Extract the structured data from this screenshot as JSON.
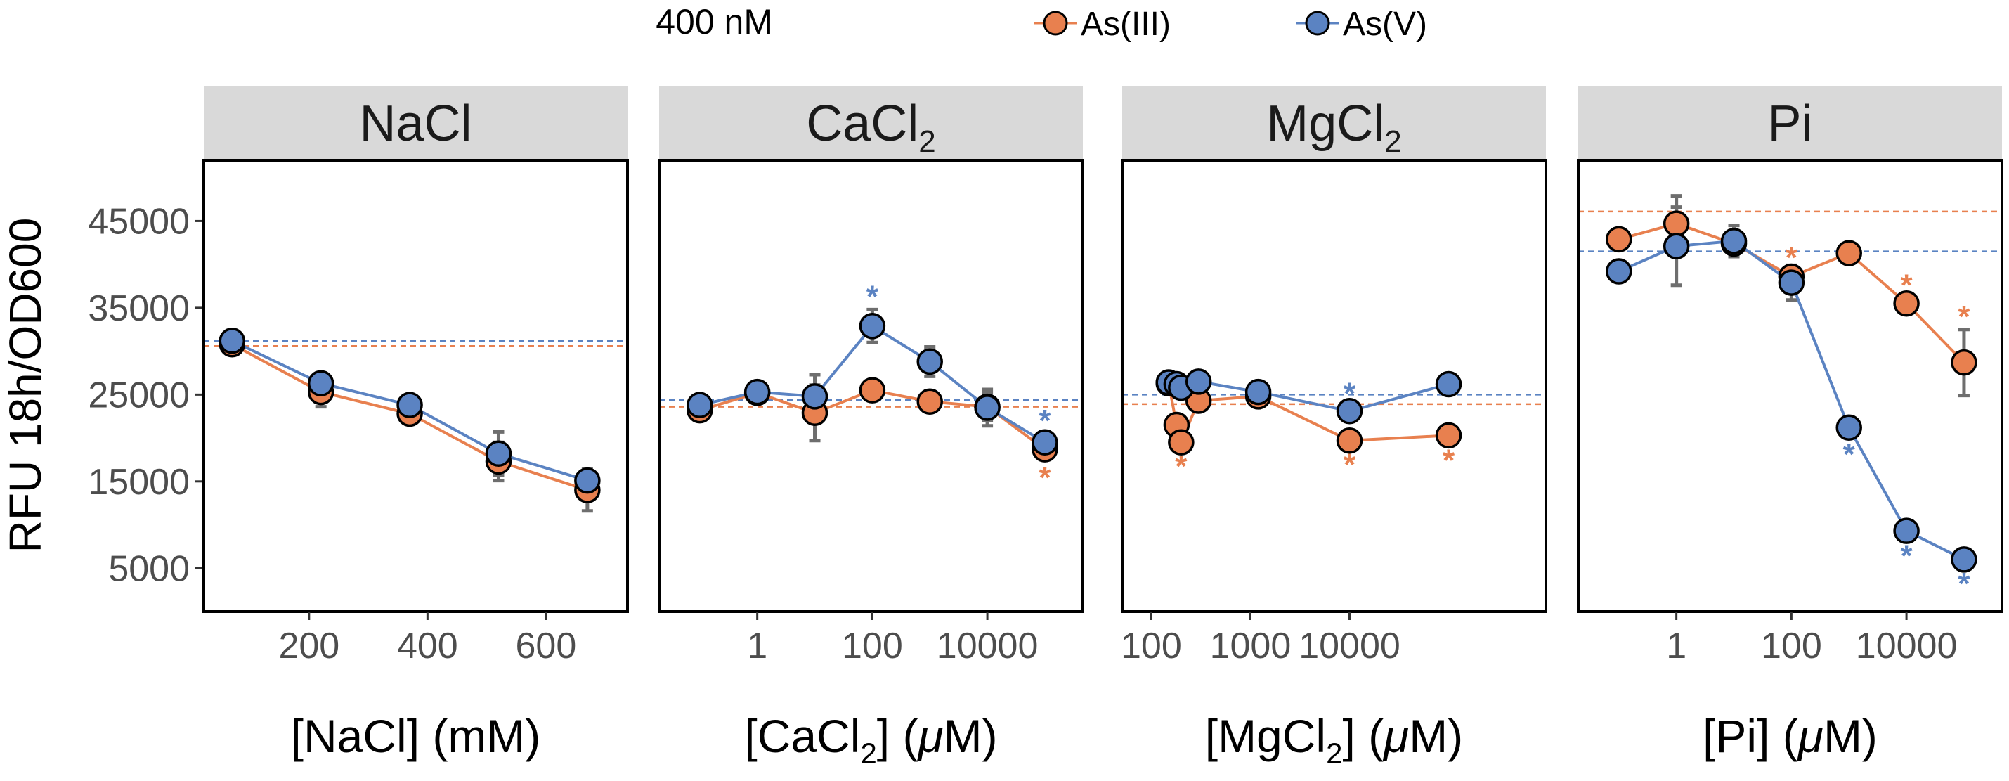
{
  "chart_data": {
    "type": "line",
    "legend": {
      "title": "400 nM",
      "position": "top-center",
      "entries": [
        {
          "key": "as3",
          "label": "As(III)",
          "color": "#E8804F"
        },
        {
          "key": "as5",
          "label": "As(V)",
          "color": "#5B83C2"
        }
      ]
    },
    "ylabel": "RFU 18h/OD600",
    "ylim": [
      0,
      52000
    ],
    "yticks": [
      5000,
      15000,
      25000,
      35000,
      45000
    ],
    "ytick_labels": [
      "5000",
      "15000",
      "25000",
      "35000",
      "45000"
    ],
    "facets": [
      {
        "name": "nacl",
        "strip": {
          "text": "NaCl",
          "sub": ""
        },
        "xlabel": {
          "pre": "[NaCl]",
          "sub": "",
          "post": " (mM)",
          "unit": "mM"
        },
        "scale": "linear",
        "xlim": [
          40,
          720
        ],
        "xticks": [
          200,
          400,
          600
        ],
        "xtick_labels": [
          "200",
          "400",
          "600"
        ],
        "series": [
          {
            "key": "as3",
            "x": [
              70,
              220,
              370,
              520,
              670
            ],
            "y": [
              30800,
              25300,
              22800,
              17300,
              14000
            ],
            "err": [
              600,
              1700,
              700,
              2200,
              2400
            ],
            "sig": [
              false,
              false,
              false,
              false,
              false
            ],
            "baseline": 30600
          },
          {
            "key": "as5",
            "x": [
              70,
              220,
              370,
              520,
              670
            ],
            "y": [
              31200,
              26300,
              23800,
              18200,
              15100
            ],
            "err": [
              500,
              1000,
              700,
              2500,
              1000
            ],
            "sig": [
              false,
              false,
              false,
              false,
              false
            ],
            "baseline": 31200
          }
        ]
      },
      {
        "name": "cacl2",
        "strip": {
          "text": "CaCl",
          "sub": "2"
        },
        "xlabel": {
          "pre": "[CaCl",
          "sub": "2",
          "post": "] (",
          "unit": "μM"
        },
        "scale": "log",
        "xlim": [
          0.03,
          300000
        ],
        "xticks": [
          1,
          100,
          10000
        ],
        "xtick_labels": [
          "1",
          "100",
          "10000"
        ],
        "series": [
          {
            "key": "as3",
            "x": [
              0.1,
              1,
              10,
              100,
              1000,
              10000,
              100000
            ],
            "y": [
              23200,
              25200,
              22900,
              25500,
              24200,
              23600,
              18700
            ],
            "err": [
              600,
              500,
              3200,
              500,
              700,
              1600,
              900
            ],
            "sig": [
              false,
              false,
              false,
              false,
              false,
              false,
              true
            ],
            "baseline": 23600
          },
          {
            "key": "as5",
            "x": [
              0.1,
              1,
              10,
              100,
              1000,
              10000,
              100000
            ],
            "y": [
              23800,
              25300,
              24800,
              32900,
              28800,
              23500,
              19500
            ],
            "err": [
              700,
              700,
              2500,
              1900,
              1700,
              2100,
              1000
            ],
            "sig": [
              false,
              false,
              false,
              true,
              false,
              false,
              true
            ],
            "baseline": 24400
          }
        ]
      },
      {
        "name": "mgcl2",
        "strip": {
          "text": "MgCl",
          "sub": "2"
        },
        "xlabel": {
          "pre": "[MgCl",
          "sub": "2",
          "post": "] (",
          "unit": "μM"
        },
        "scale": "log",
        "xlim": [
          65,
          750000
        ],
        "xticks": [
          100,
          1000,
          10000
        ],
        "xtick_labels": [
          "100",
          "1000",
          "10000"
        ],
        "series": [
          {
            "key": "as3",
            "x": [
              150,
              180,
              200,
              300,
              1200,
              10000,
              100000
            ],
            "y": [
              26300,
              21500,
              19500,
              24300,
              24800,
              19700,
              20300
            ],
            "err": [
              400,
              400,
              400,
              500,
              500,
              400,
              500
            ],
            "sig": [
              false,
              true,
              true,
              false,
              false,
              true,
              true
            ],
            "baseline": 23900
          },
          {
            "key": "as5",
            "x": [
              150,
              180,
              200,
              300,
              1200,
              10000,
              100000
            ],
            "y": [
              26400,
              26200,
              25800,
              26500,
              25300,
              23100,
              26200
            ],
            "err": [
              400,
              400,
              400,
              500,
              500,
              500,
              500
            ],
            "sig": [
              false,
              false,
              false,
              false,
              false,
              true,
              false
            ],
            "baseline": 25000
          }
        ]
      },
      {
        "name": "pi",
        "strip": {
          "text": "Pi",
          "sub": ""
        },
        "xlabel": {
          "pre": "[Pi]",
          "sub": "",
          "post": " (",
          "unit": "μM"
        },
        "scale": "log",
        "xlim": [
          0.03,
          300000
        ],
        "xticks": [
          1,
          100,
          10000
        ],
        "xtick_labels": [
          "1",
          "100",
          "10000"
        ],
        "series": [
          {
            "key": "as3",
            "x": [
              0.1,
              1,
              10,
              100,
              1000,
              10000,
              100000
            ],
            "y": [
              42900,
              44700,
              42400,
              38600,
              41300,
              35500,
              28700
            ],
            "err": [
              500,
              3200,
              1500,
              700,
              700,
              600,
              3800
            ],
            "sig": [
              false,
              false,
              false,
              true,
              false,
              true,
              true
            ],
            "baseline": 46100
          },
          {
            "key": "as5",
            "x": [
              0.1,
              1,
              10,
              100,
              1000,
              10000,
              100000
            ],
            "y": [
              39200,
              42100,
              42700,
              37900,
              21200,
              9300,
              6000
            ],
            "err": [
              500,
              4500,
              1800,
              2000,
              700,
              500,
              400
            ],
            "sig": [
              false,
              false,
              false,
              false,
              true,
              true,
              true
            ],
            "baseline": 41500
          }
        ]
      }
    ]
  }
}
